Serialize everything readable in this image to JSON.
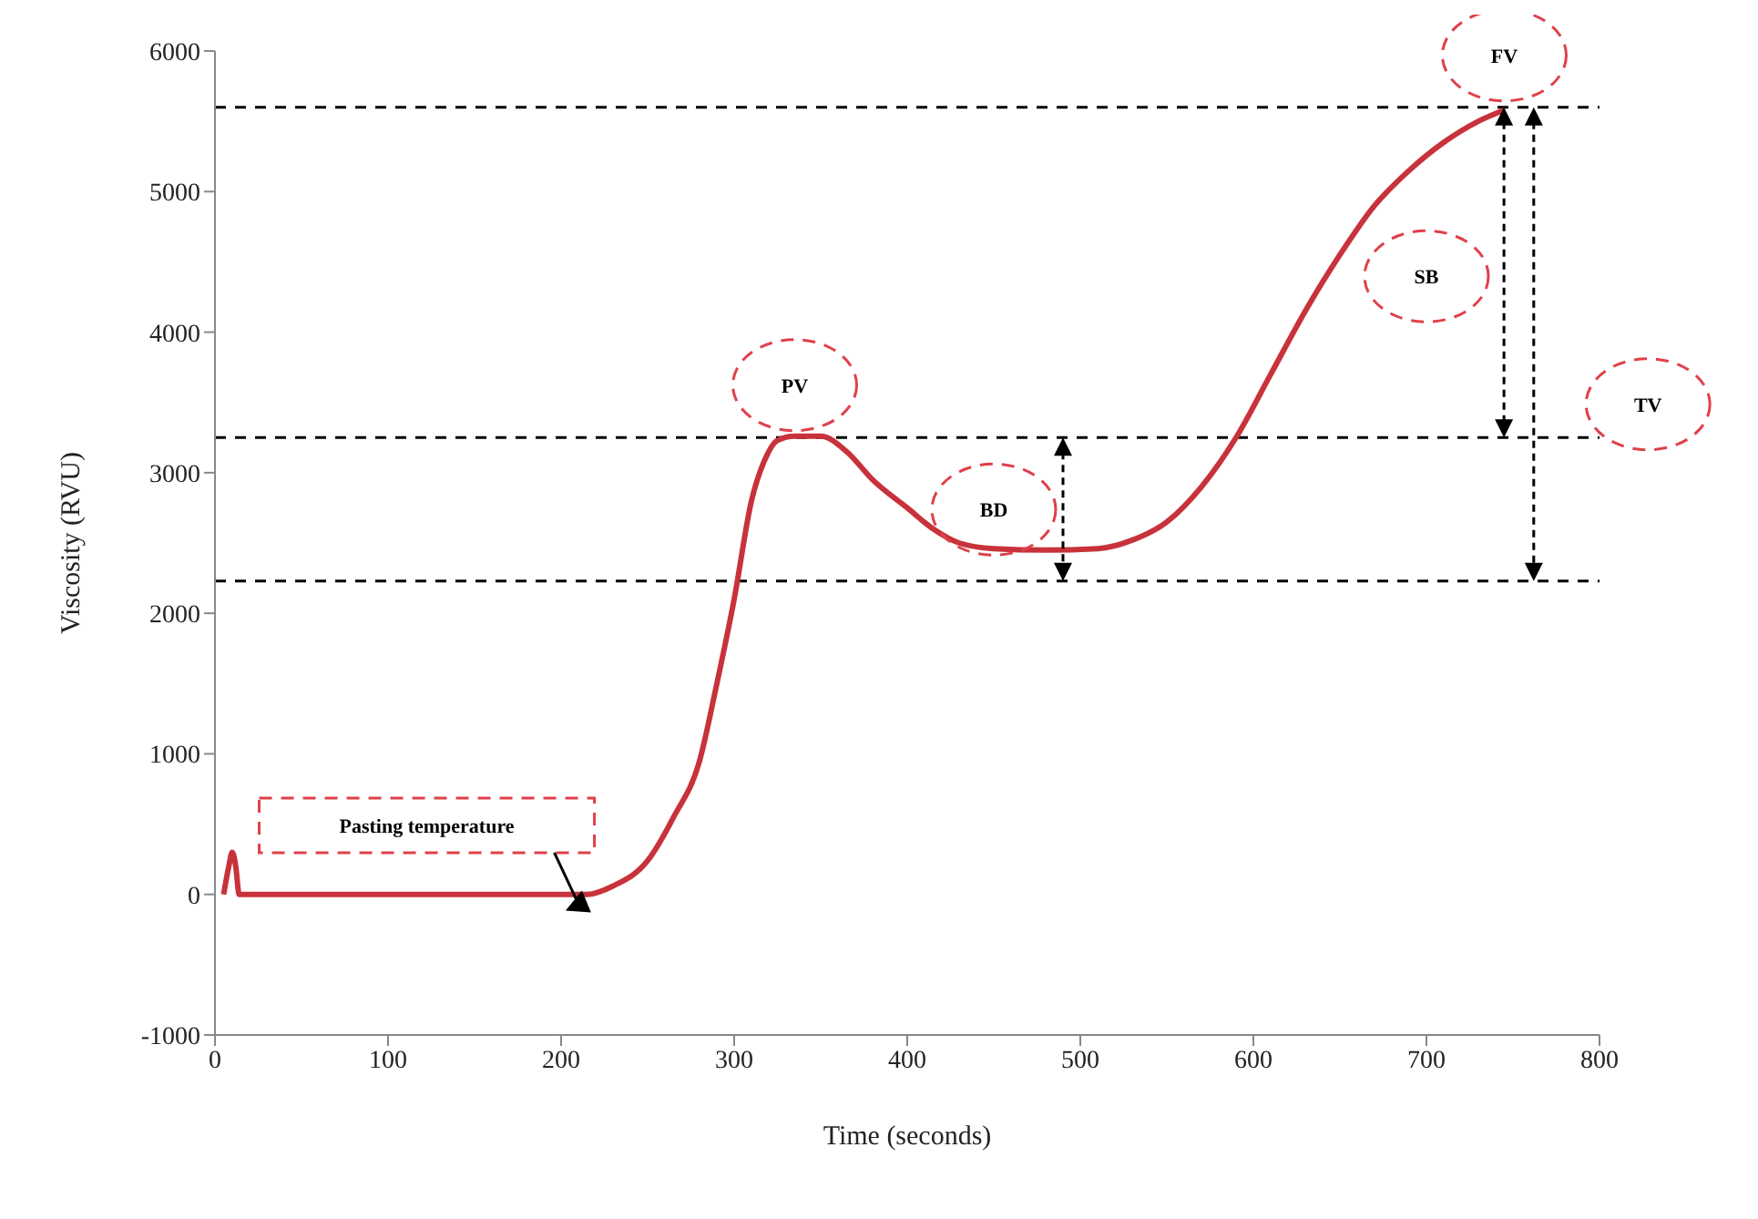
{
  "chart_data": {
    "type": "line",
    "xlabel": "Time (seconds)",
    "ylabel": "Viscosity (RVU)",
    "xlim": [
      0,
      800
    ],
    "xticks": [
      0,
      100,
      200,
      300,
      400,
      500,
      600,
      700,
      800
    ],
    "ylim": [
      -1000,
      6000
    ],
    "yticks": [
      -1000,
      0,
      1000,
      2000,
      3000,
      4000,
      5000,
      6000
    ],
    "grid": false,
    "legend": false,
    "marker": "none",
    "line_style": "solid",
    "series": [
      {
        "color": "#c8323a",
        "x": [
          5,
          8,
          10,
          12,
          14,
          16,
          20,
          50,
          100,
          150,
          200,
          215,
          230,
          250,
          265,
          280,
          290,
          300,
          310,
          318,
          325,
          335,
          350,
          365,
          380,
          400,
          415,
          430,
          450,
          480,
          510,
          530,
          550,
          570,
          590,
          610,
          630,
          650,
          670,
          690,
          710,
          730,
          745
        ],
        "values": [
          0,
          200,
          300,
          200,
          0,
          0,
          0,
          0,
          0,
          0,
          0,
          0,
          60,
          240,
          550,
          950,
          1500,
          2100,
          2800,
          3100,
          3230,
          3260,
          3260,
          3150,
          2950,
          2750,
          2600,
          2500,
          2460,
          2450,
          2460,
          2520,
          2650,
          2900,
          3250,
          3700,
          4150,
          4550,
          4900,
          5150,
          5350,
          5500,
          5580
        ]
      }
    ],
    "ref_lines": [
      {
        "axis": "y",
        "value": 5600,
        "line_style": "dashed",
        "color": "#000000"
      },
      {
        "axis": "y",
        "value": 3250,
        "line_style": "dashed",
        "color": "#000000"
      },
      {
        "axis": "y",
        "value": 2230,
        "line_style": "dashed",
        "color": "#000000"
      }
    ],
    "annotations": [
      "Pasting temperature",
      {
        "text": "PV",
        "x": 335,
        "y": 3260
      },
      "BD",
      "SB",
      "TV",
      {
        "text": "FV",
        "x": 745,
        "y": 5580
      }
    ]
  }
}
